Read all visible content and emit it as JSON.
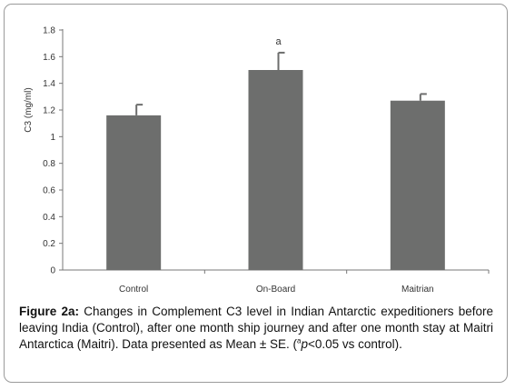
{
  "chart_data": {
    "type": "bar",
    "ylabel": "C3 (mg/ml)",
    "xlabel": "",
    "ylim": [
      0,
      1.8
    ],
    "yticks": [
      "0",
      "0.2",
      "0.4",
      "0.6",
      "0.8",
      "1",
      "1.2",
      "1.4",
      "1.6",
      "1.8"
    ],
    "categories": [
      "Control",
      "On-Board",
      "Maitrian"
    ],
    "values": [
      1.16,
      1.5,
      1.27
    ],
    "errors": [
      0.08,
      0.13,
      0.05
    ],
    "annotations": [
      "",
      "a",
      ""
    ],
    "bar_color": "#6d6e6d",
    "grid": false
  },
  "caption": {
    "label": "Figure 2a:",
    "line1": " Changes in Complement C3 level in Indian Antarctic expeditioners before leaving India (Control), after one month ship journey and after one month stay at Maitri Antarctica (Maitri). Data presented as Mean ± SE. (",
    "sup": "a",
    "italic": "p",
    "tail": "<0.05 vs control)."
  }
}
